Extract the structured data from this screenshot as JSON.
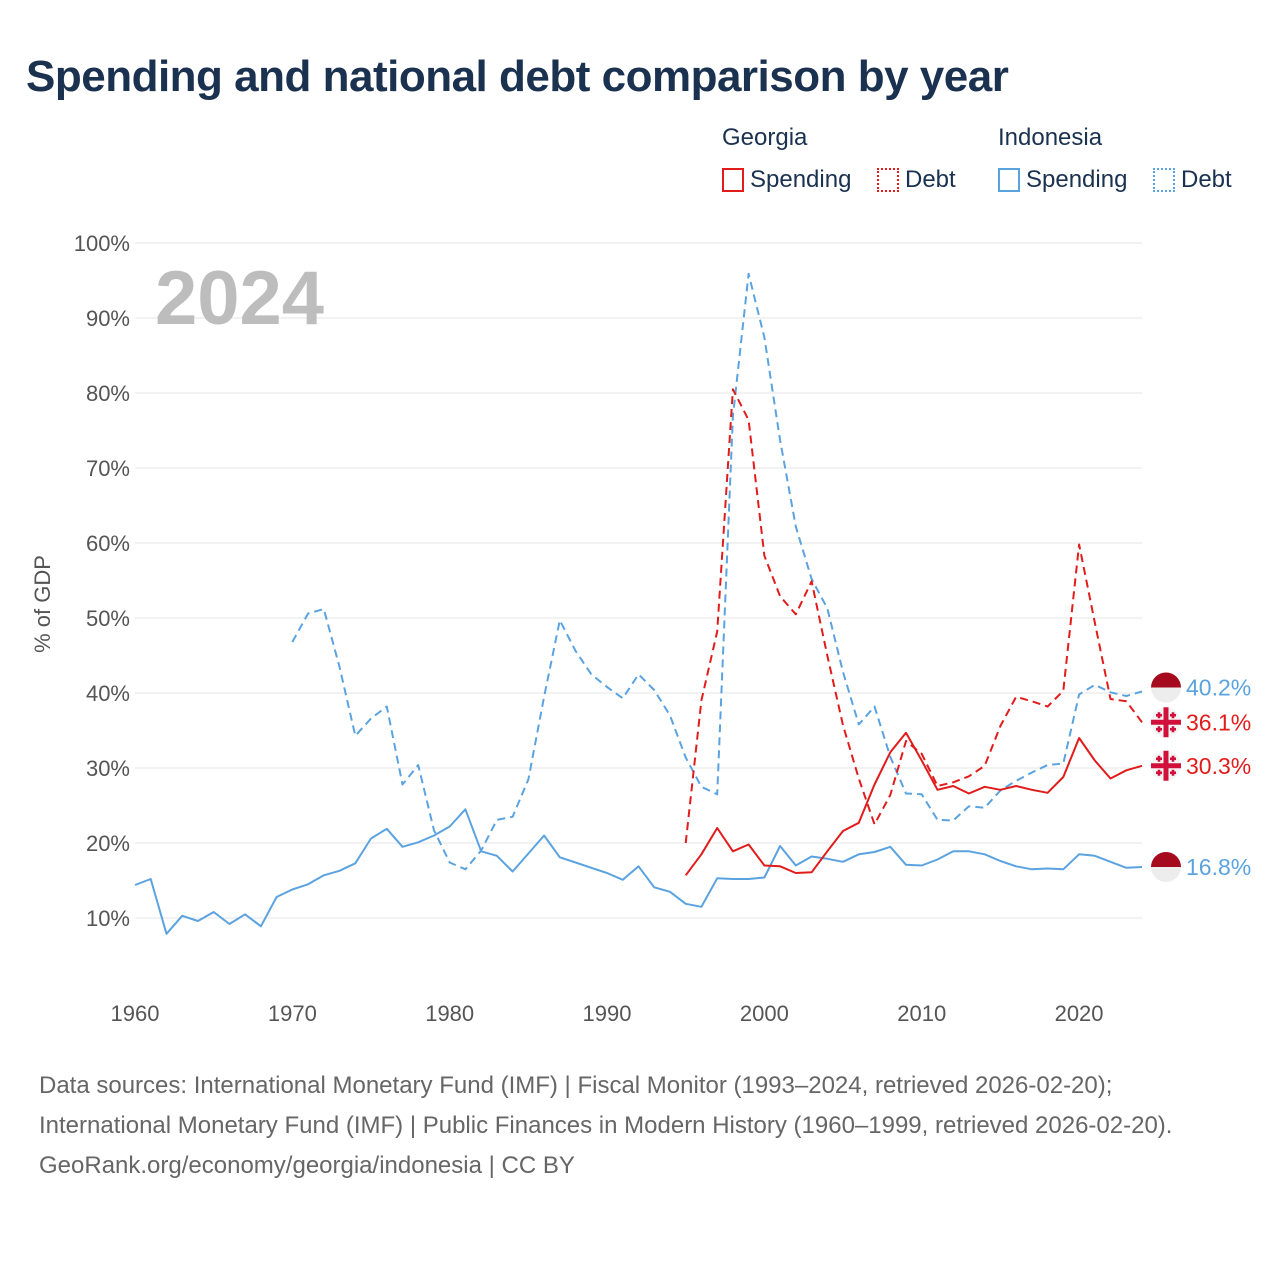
{
  "title": "Spending and national debt comparison by year",
  "legend": {
    "groups": [
      {
        "name": "Georgia",
        "color": "#e21b1b",
        "items": [
          {
            "label": "Spending",
            "style": "solid"
          },
          {
            "label": "Debt",
            "style": "dotted"
          }
        ]
      },
      {
        "name": "Indonesia",
        "color": "#5ba3e0",
        "items": [
          {
            "label": "Spending",
            "style": "solid"
          },
          {
            "label": "Debt",
            "style": "dotted"
          }
        ]
      }
    ]
  },
  "footer": {
    "sources": "Data sources: International Monetary Fund (IMF) | Fiscal Monitor (1993–2024, retrieved 2026-02-20); International Monetary Fund (IMF) | Public Finances in Modern History (1960–1999, retrieved 2026-02-20).",
    "credit": "GeoRank.org/economy/georgia/indonesia | CC BY"
  },
  "chart_data": {
    "type": "line",
    "title": "Spending and national debt comparison by year",
    "year_watermark": "2024",
    "xlabel": "",
    "ylabel": "% of GDP",
    "xlim": [
      1960,
      2024
    ],
    "ylim": [
      0,
      100
    ],
    "xticks": [
      1960,
      1970,
      1980,
      1990,
      2000,
      2010,
      2020
    ],
    "yticks": [
      10,
      20,
      30,
      40,
      50,
      60,
      70,
      80,
      90,
      100
    ],
    "ytick_labels": [
      "10%",
      "20%",
      "30%",
      "40%",
      "50%",
      "60%",
      "70%",
      "80%",
      "90%",
      "100%"
    ],
    "grid": true,
    "series": [
      {
        "name": "Indonesia Spending",
        "country": "Indonesia",
        "metric": "Spending",
        "color": "#5ba3e0",
        "dashed": false,
        "end_label": "16.8%",
        "x": [
          1960,
          1961,
          1962,
          1963,
          1964,
          1965,
          1966,
          1967,
          1968,
          1969,
          1970,
          1971,
          1972,
          1973,
          1974,
          1975,
          1976,
          1977,
          1978,
          1979,
          1980,
          1981,
          1982,
          1983,
          1984,
          1985,
          1986,
          1987,
          1988,
          1989,
          1990,
          1991,
          1992,
          1993,
          1994,
          1995,
          1996,
          1997,
          1998,
          1999,
          2000,
          2001,
          2002,
          2003,
          2004,
          2005,
          2006,
          2007,
          2008,
          2009,
          2010,
          2011,
          2012,
          2013,
          2014,
          2015,
          2016,
          2017,
          2018,
          2019,
          2020,
          2021,
          2022,
          2023,
          2024
        ],
        "y": [
          14.4,
          15.2,
          7.9,
          10.3,
          9.6,
          10.8,
          9.2,
          10.5,
          8.9,
          12.8,
          13.8,
          14.5,
          15.7,
          16.3,
          17.3,
          20.6,
          21.9,
          19.5,
          20.1,
          21.0,
          22.2,
          24.5,
          18.9,
          18.3,
          16.2,
          18.6,
          21.0,
          18.1,
          17.4,
          16.7,
          16.0,
          15.1,
          16.9,
          14.1,
          13.5,
          11.9,
          11.5,
          15.3,
          15.2,
          15.2,
          15.4,
          19.6,
          17.0,
          18.2,
          17.9,
          17.5,
          18.5,
          18.8,
          19.5,
          17.1,
          17.0,
          17.8,
          18.9,
          18.9,
          18.5,
          17.6,
          16.9,
          16.5,
          16.6,
          16.5,
          18.5,
          18.3,
          17.5,
          16.7,
          16.8
        ]
      },
      {
        "name": "Indonesia Debt",
        "country": "Indonesia",
        "metric": "Debt",
        "color": "#5ba3e0",
        "dashed": true,
        "end_label": "40.2%",
        "x": [
          1970,
          1971,
          1972,
          1973,
          1974,
          1975,
          1976,
          1977,
          1978,
          1979,
          1980,
          1981,
          1982,
          1983,
          1984,
          1985,
          1986,
          1987,
          1988,
          1989,
          1990,
          1991,
          1992,
          1993,
          1994,
          1995,
          1996,
          1997,
          1998,
          1999,
          2000,
          2001,
          2002,
          2003,
          2004,
          2005,
          2006,
          2007,
          2008,
          2009,
          2010,
          2011,
          2012,
          2013,
          2014,
          2015,
          2016,
          2017,
          2018,
          2019,
          2020,
          2021,
          2022,
          2023,
          2024
        ],
        "y": [
          46.8,
          50.6,
          51.2,
          43.5,
          34.3,
          36.6,
          38.2,
          27.8,
          30.4,
          21.7,
          17.4,
          16.5,
          19.0,
          23.1,
          23.5,
          28.5,
          39.5,
          49.7,
          45.6,
          42.5,
          40.8,
          39.3,
          42.5,
          40.4,
          37.0,
          31.4,
          27.5,
          26.5,
          76.9,
          95.9,
          87.4,
          73.7,
          62.2,
          55.2,
          51.3,
          42.8,
          35.8,
          38.2,
          31.5,
          26.6,
          26.5,
          23.1,
          23.0,
          24.9,
          24.7,
          27.0,
          28.3,
          29.4,
          30.4,
          30.6,
          39.8,
          41.1,
          40.1,
          39.6,
          40.2
        ]
      },
      {
        "name": "Georgia Spending",
        "country": "Georgia",
        "metric": "Spending",
        "color": "#e21b1b",
        "dashed": false,
        "end_label": "30.3%",
        "x": [
          1995,
          1996,
          1997,
          1998,
          1999,
          2000,
          2001,
          2002,
          2003,
          2004,
          2005,
          2006,
          2007,
          2008,
          2009,
          2010,
          2011,
          2012,
          2013,
          2014,
          2015,
          2016,
          2017,
          2018,
          2019,
          2020,
          2021,
          2022,
          2023,
          2024
        ],
        "y": [
          15.7,
          18.5,
          22.0,
          18.9,
          19.8,
          17.0,
          16.9,
          16.0,
          16.1,
          18.9,
          21.6,
          22.7,
          27.8,
          32.1,
          34.7,
          31.0,
          27.1,
          27.6,
          26.6,
          27.5,
          27.1,
          27.6,
          27.1,
          26.7,
          28.8,
          34.0,
          31.0,
          28.6,
          29.7,
          30.3
        ]
      },
      {
        "name": "Georgia Debt",
        "country": "Georgia",
        "metric": "Debt",
        "color": "#e21b1b",
        "dashed": true,
        "end_label": "36.1%",
        "x": [
          1995,
          1996,
          1997,
          1998,
          1999,
          2000,
          2001,
          2002,
          2003,
          2004,
          2005,
          2006,
          2007,
          2008,
          2009,
          2010,
          2011,
          2012,
          2013,
          2014,
          2015,
          2016,
          2017,
          2018,
          2019,
          2020,
          2021,
          2022,
          2023,
          2024
        ],
        "y": [
          20.0,
          39.0,
          48.2,
          80.5,
          76.4,
          58.3,
          52.9,
          50.5,
          54.9,
          45.0,
          35.7,
          28.6,
          22.5,
          26.4,
          33.6,
          31.9,
          27.6,
          28.1,
          28.9,
          30.3,
          35.6,
          39.5,
          38.9,
          38.2,
          40.3,
          59.8,
          49.4,
          39.2,
          38.9,
          36.1
        ]
      }
    ]
  }
}
